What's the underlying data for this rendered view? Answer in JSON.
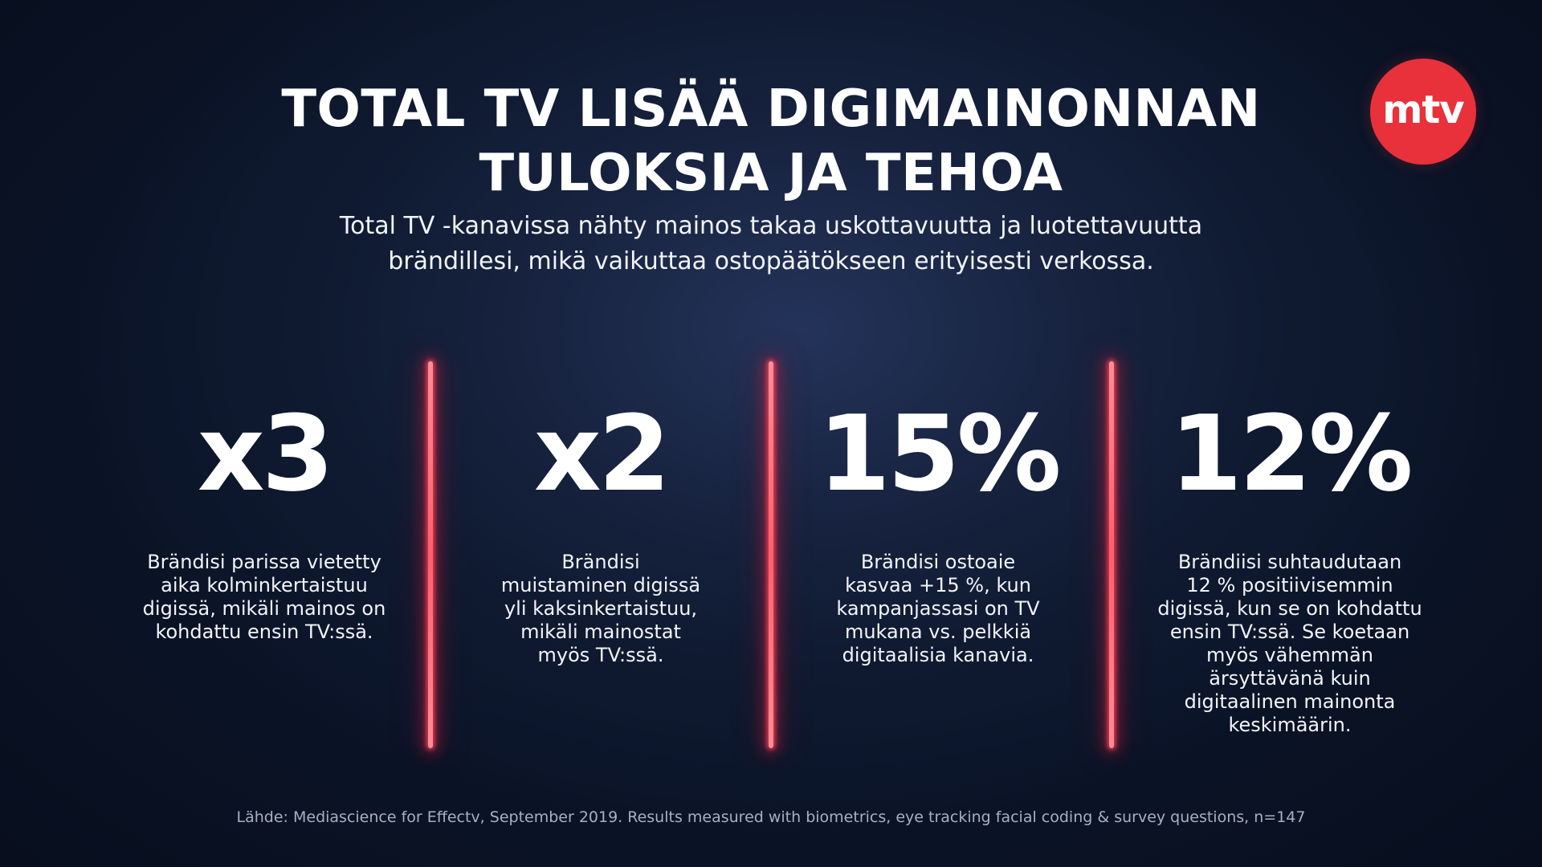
{
  "title": {
    "line1": "TOTAL TV LISÄÄ DIGIMAINONNAN",
    "line2": "TULOKSIA JA TEHOA"
  },
  "subtitle": {
    "line1": "Total TV -kanavissa nähty mainos takaa uskottavuutta ja luotettavuutta",
    "line2": "brändillesi, mikä vaikuttaa ostopäätökseen erityisesti verkossa."
  },
  "logo": {
    "text": "mtv",
    "color": "#e8313a"
  },
  "colors": {
    "background": "#17233f",
    "divider_glow": "#ff4a5a",
    "text": "#ffffff"
  },
  "stats": [
    {
      "value": "x3",
      "description_lines": [
        "Brändisi parissa vietetty",
        "aika kolminkertaistuu",
        "digissä, mikäli mainos on",
        "kohdattu ensin TV:ssä."
      ]
    },
    {
      "value": "x2",
      "description_lines": [
        "Brändisi",
        "muistaminen digissä",
        "yli kaksinkertaistuu,",
        "mikäli mainostat",
        "myös TV:ssä."
      ]
    },
    {
      "value": "15%",
      "description_lines": [
        "Brändisi ostoaie",
        "kasvaa +15 %, kun",
        "kampanjassasi on TV",
        "mukana vs. pelkkiä",
        "digitaalisia kanavia."
      ]
    },
    {
      "value": "12%",
      "description_lines": [
        "Brändiisi suhtaudutaan",
        "12 % positiivisemmin",
        "digissä, kun se on kohdattu",
        "ensin TV:ssä. Se koetaan",
        "myös vähemmän",
        "ärsyttävänä kuin",
        "digitaalinen mainonta",
        "keskimäärin."
      ]
    }
  ],
  "source": "Lähde: Mediascience for Effectv, September 2019. Results measured with biometrics, eye tracking facial coding & survey questions, n=147"
}
